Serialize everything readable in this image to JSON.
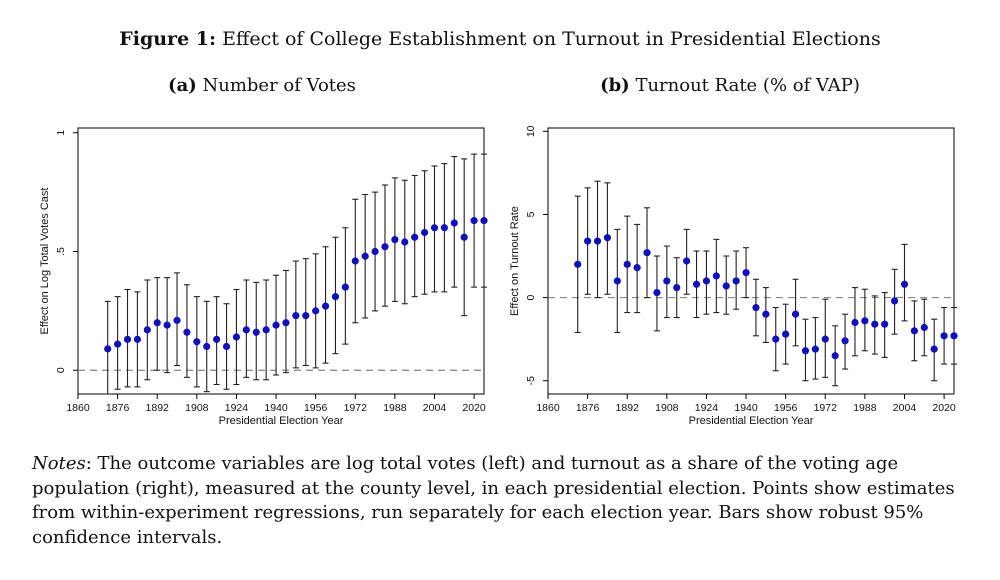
{
  "figure": {
    "label": "Figure 1:",
    "title": "Effect of College Establishment on Turnout in Presidential Elections"
  },
  "notes": {
    "label": "Notes",
    "text": ": The outcome variables are log total votes (left) and turnout as a share of the voting age population (right), measured at the county level, in each presidential election. Points show estimates from within-experiment regressions, run separately for each election year. Bars show robust 95% confidence intervals."
  },
  "colors": {
    "point": "#1010c0",
    "bar": "#222222",
    "zero_line": "#888888",
    "plot_border": "#000000"
  },
  "chart_data": [
    {
      "type": "scatter",
      "panel_label": "(a)",
      "title": "Number of Votes",
      "xlabel": "Presidential Election Year",
      "ylabel": "Effect on Log Total Votes Cast",
      "xlim": [
        1860,
        2024
      ],
      "ylim": [
        -0.1,
        1.02
      ],
      "xticks": [
        1860,
        1876,
        1892,
        1908,
        1924,
        1940,
        1956,
        1972,
        1988,
        2004,
        2020
      ],
      "yticks": [
        0,
        0.5,
        1
      ],
      "ytick_labels": [
        "0",
        ".5",
        "1"
      ],
      "reference_line": 0,
      "x": [
        1872,
        1876,
        1880,
        1884,
        1888,
        1892,
        1896,
        1900,
        1904,
        1908,
        1912,
        1916,
        1920,
        1924,
        1928,
        1932,
        1936,
        1940,
        1944,
        1948,
        1952,
        1956,
        1960,
        1964,
        1968,
        1972,
        1976,
        1980,
        1984,
        1988,
        1992,
        1996,
        2000,
        2004,
        2008,
        2012,
        2016,
        2020,
        2024
      ],
      "estimate": [
        0.09,
        0.11,
        0.13,
        0.13,
        0.17,
        0.2,
        0.19,
        0.21,
        0.16,
        0.12,
        0.1,
        0.13,
        0.1,
        0.14,
        0.17,
        0.16,
        0.17,
        0.19,
        0.2,
        0.23,
        0.23,
        0.25,
        0.27,
        0.31,
        0.35,
        0.46,
        0.48,
        0.5,
        0.52,
        0.55,
        0.54,
        0.56,
        0.58,
        0.6,
        0.6,
        0.62,
        0.56,
        0.63,
        0.63
      ],
      "ci_low": [
        -0.1,
        -0.08,
        -0.07,
        -0.07,
        -0.04,
        0.0,
        -0.01,
        0.02,
        -0.03,
        -0.07,
        -0.09,
        -0.06,
        -0.08,
        -0.06,
        -0.03,
        -0.04,
        -0.04,
        -0.02,
        -0.01,
        0.01,
        0.02,
        0.01,
        0.03,
        0.07,
        0.11,
        0.2,
        0.22,
        0.25,
        0.27,
        0.29,
        0.28,
        0.31,
        0.32,
        0.33,
        0.33,
        0.35,
        0.23,
        0.35,
        0.35
      ],
      "ci_high": [
        0.29,
        0.31,
        0.34,
        0.33,
        0.38,
        0.39,
        0.39,
        0.41,
        0.36,
        0.31,
        0.29,
        0.31,
        0.28,
        0.34,
        0.38,
        0.37,
        0.38,
        0.4,
        0.42,
        0.46,
        0.47,
        0.49,
        0.52,
        0.56,
        0.6,
        0.72,
        0.74,
        0.75,
        0.78,
        0.81,
        0.8,
        0.82,
        0.84,
        0.86,
        0.87,
        0.9,
        0.89,
        0.91,
        0.91
      ]
    },
    {
      "type": "scatter",
      "panel_label": "(b)",
      "title": "Turnout Rate (% of VAP)",
      "xlabel": "Presidential Election Year",
      "ylabel": "Effect on Turnout Rate",
      "xlim": [
        1860,
        2024
      ],
      "ylim": [
        -5.8,
        10.2
      ],
      "xticks": [
        1860,
        1876,
        1892,
        1908,
        1924,
        1940,
        1956,
        1972,
        1988,
        2004,
        2020
      ],
      "yticks": [
        -5,
        0,
        5,
        10
      ],
      "ytick_labels": [
        "-5",
        "0",
        "5",
        "10"
      ],
      "reference_line": 0,
      "x": [
        1872,
        1876,
        1880,
        1884,
        1888,
        1892,
        1896,
        1900,
        1904,
        1908,
        1912,
        1916,
        1920,
        1924,
        1928,
        1932,
        1936,
        1940,
        1944,
        1948,
        1952,
        1956,
        1960,
        1964,
        1968,
        1972,
        1976,
        1980,
        1984,
        1988,
        1992,
        1996,
        2000,
        2004,
        2008,
        2012,
        2016,
        2020,
        2024
      ],
      "estimate": [
        2.0,
        3.4,
        3.4,
        3.6,
        1.0,
        2.0,
        1.8,
        2.7,
        0.3,
        1.0,
        0.6,
        2.2,
        0.8,
        1.0,
        1.3,
        0.7,
        1.0,
        1.5,
        -0.6,
        -1.0,
        -2.5,
        -2.2,
        -1.0,
        -3.2,
        -3.1,
        -2.5,
        -3.5,
        -2.6,
        -1.5,
        -1.4,
        -1.6,
        -1.6,
        -0.2,
        0.8,
        -2.0,
        -1.8,
        -3.1,
        -2.3,
        -2.3
      ],
      "ci_low": [
        -2.1,
        0.2,
        0.0,
        0.2,
        -2.1,
        -0.9,
        -0.9,
        0.0,
        -2.0,
        -1.2,
        -1.2,
        0.2,
        -1.2,
        -1.0,
        -0.9,
        -1.0,
        -0.7,
        0.0,
        -2.3,
        -2.7,
        -4.4,
        -4.0,
        -2.9,
        -5.0,
        -4.9,
        -4.8,
        -5.3,
        -4.3,
        -3.5,
        -3.2,
        -3.4,
        -3.6,
        -2.2,
        -1.4,
        -3.8,
        -3.5,
        -5.0,
        -4.0,
        -4.0
      ],
      "ci_high": [
        6.1,
        6.6,
        7.0,
        6.9,
        4.1,
        4.9,
        4.4,
        5.4,
        2.5,
        3.1,
        2.4,
        4.1,
        2.8,
        2.8,
        3.5,
        2.5,
        2.8,
        3.0,
        1.1,
        0.6,
        -0.6,
        -0.4,
        1.1,
        -1.3,
        -1.2,
        -0.1,
        -1.7,
        -1.0,
        0.6,
        0.5,
        0.1,
        0.3,
        1.7,
        3.2,
        -0.2,
        -0.1,
        -1.3,
        -0.6,
        -0.6
      ]
    }
  ]
}
